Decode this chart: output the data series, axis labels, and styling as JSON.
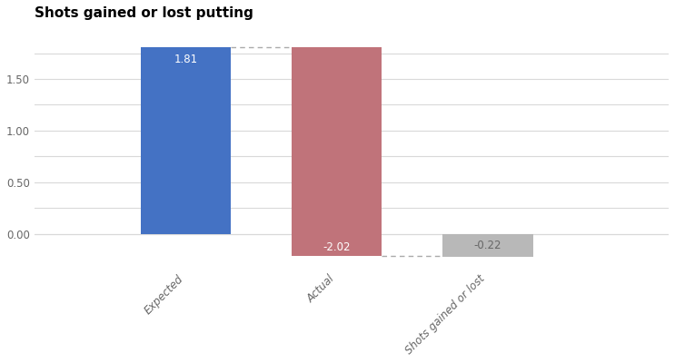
{
  "title": "Shots gained or lost putting",
  "categories": [
    "Expected",
    "Actual",
    "Shots gained or lost"
  ],
  "bar_colors": [
    "#4472c4",
    "#c0737a",
    "#b8b8b8"
  ],
  "bar_labels": [
    "1.81",
    "-2.02",
    "-0.22"
  ],
  "bar_label_colors": [
    "white",
    "white",
    "#666666"
  ],
  "yticks": [
    0.0,
    0.25,
    0.5,
    0.75,
    1.0,
    1.25,
    1.5,
    1.75
  ],
  "ytick_labels": [
    "0.00",
    "",
    "0.50",
    "",
    "1.00",
    "",
    "1.50",
    ""
  ],
  "ylim": [
    -0.35,
    2.0
  ],
  "grid_color": "#d9d9d9",
  "background_color": "#ffffff",
  "title_fontsize": 11,
  "connector_color": "#aaaaaa",
  "figsize": [
    7.43,
    4.0
  ],
  "dpi": 100,
  "expected_val": 1.81,
  "actual_change": -2.02,
  "result_val": -0.22
}
